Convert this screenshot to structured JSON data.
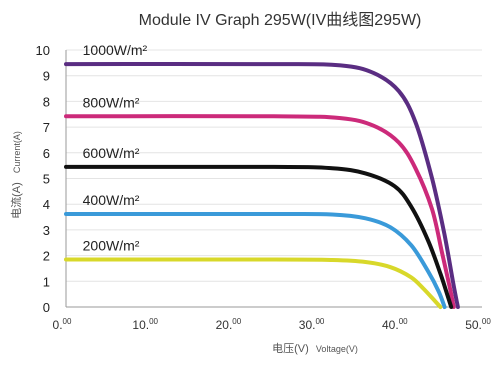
{
  "chart_data": {
    "type": "line",
    "title": "Module IV Graph 295W(IV曲线图295W)",
    "ylabel": {
      "cn": "电流(A)",
      "en": "Current(A)"
    },
    "xlabel": {
      "cn": "电压(V)",
      "en": "Voltage(V)"
    },
    "xlim": [
      0,
      50
    ],
    "ylim": [
      0,
      10
    ],
    "y_ticks": [
      "0",
      "1",
      "2",
      "3",
      "4",
      "5",
      "6",
      "7",
      "8",
      "9",
      "10"
    ],
    "x_ticks": [
      {
        "value": 0,
        "main": "0.",
        "sup": "00"
      },
      {
        "value": 10,
        "main": "10.",
        "sup": "00"
      },
      {
        "value": 20,
        "main": "20.",
        "sup": "00"
      },
      {
        "value": 30,
        "main": "30.",
        "sup": "00"
      },
      {
        "value": 40,
        "main": "40.",
        "sup": "00"
      },
      {
        "value": 50,
        "main": "50.",
        "sup": "00"
      }
    ],
    "grid": {
      "horizontal": true,
      "vertical": false
    },
    "series": [
      {
        "name": "1000W/m²",
        "color": "#5a2d82",
        "x": [
          0,
          25,
          33,
          37,
          40,
          42,
          44,
          45.5,
          46.5,
          47.1
        ],
        "y": [
          9.45,
          9.45,
          9.4,
          9.1,
          8.4,
          7.2,
          5.0,
          2.8,
          1.0,
          0
        ]
      },
      {
        "name": "800W/m²",
        "color": "#cc2a7a",
        "x": [
          0,
          25,
          33,
          37,
          40,
          42,
          44,
          45.2,
          46.1,
          46.6
        ],
        "y": [
          7.42,
          7.42,
          7.35,
          7.05,
          6.4,
          5.4,
          3.8,
          2.1,
          0.8,
          0
        ]
      },
      {
        "name": "600W/m²",
        "color": "#111111",
        "x": [
          0,
          25,
          32,
          36,
          39.5,
          41.5,
          43.5,
          45,
          45.8,
          46.3
        ],
        "y": [
          5.45,
          5.45,
          5.4,
          5.2,
          4.7,
          3.9,
          2.6,
          1.3,
          0.5,
          0
        ]
      },
      {
        "name": "400W/m²",
        "color": "#3a9ad9",
        "x": [
          0,
          25,
          32,
          36,
          39,
          41.5,
          43.5,
          44.8,
          45.5
        ],
        "y": [
          3.62,
          3.62,
          3.6,
          3.45,
          3.1,
          2.4,
          1.4,
          0.6,
          0
        ]
      },
      {
        "name": "200W/m²",
        "color": "#d8d82a",
        "x": [
          0,
          25,
          32,
          36,
          39,
          41.5,
          43,
          44.3,
          45
        ],
        "y": [
          1.85,
          1.85,
          1.83,
          1.75,
          1.55,
          1.15,
          0.7,
          0.25,
          0
        ]
      }
    ]
  }
}
